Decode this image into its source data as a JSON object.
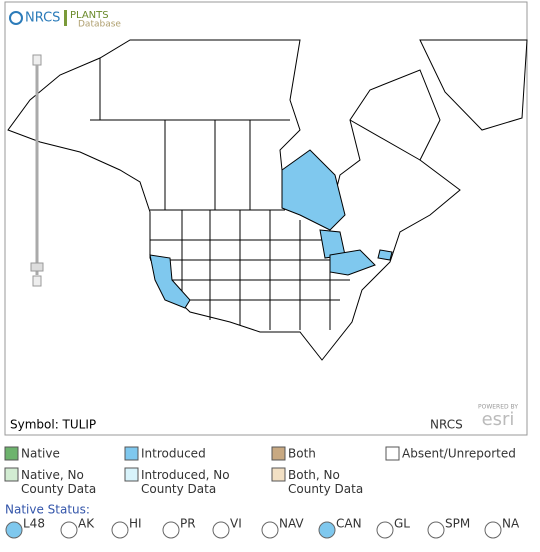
{
  "header": {
    "agency": "NRCS",
    "plants": "PLANTS",
    "database": "Database"
  },
  "map": {
    "symbol": "Symbol: TULIP",
    "credit": "NRCS",
    "powered": "POWERED BY",
    "esri": "esri",
    "introduced_color": "#7fc8ee"
  },
  "legend": [
    {
      "label": "Native",
      "color": "#6db36d"
    },
    {
      "label": "Introduced",
      "color": "#7fc8ee"
    },
    {
      "label": "Both",
      "color": "#c8a982"
    },
    {
      "label": "Absent/Unreported",
      "color": "#ffffff"
    },
    {
      "label": "Native, No County Data",
      "color": "#d2ecd2"
    },
    {
      "label": "Introduced, No County Data",
      "color": "#d8f3fb"
    },
    {
      "label": "Both, No County Data",
      "color": "#f2e0c4"
    }
  ],
  "native_status": {
    "label": "Native Status:",
    "options": [
      {
        "label": "L48",
        "checked": true
      },
      {
        "label": "AK",
        "checked": false
      },
      {
        "label": "HI",
        "checked": false
      },
      {
        "label": "PR",
        "checked": false
      },
      {
        "label": "VI",
        "checked": false
      },
      {
        "label": "NAV",
        "checked": false
      },
      {
        "label": "CAN",
        "checked": true
      },
      {
        "label": "GL",
        "checked": false
      },
      {
        "label": "SPM",
        "checked": false
      },
      {
        "label": "NA",
        "checked": false
      }
    ]
  }
}
